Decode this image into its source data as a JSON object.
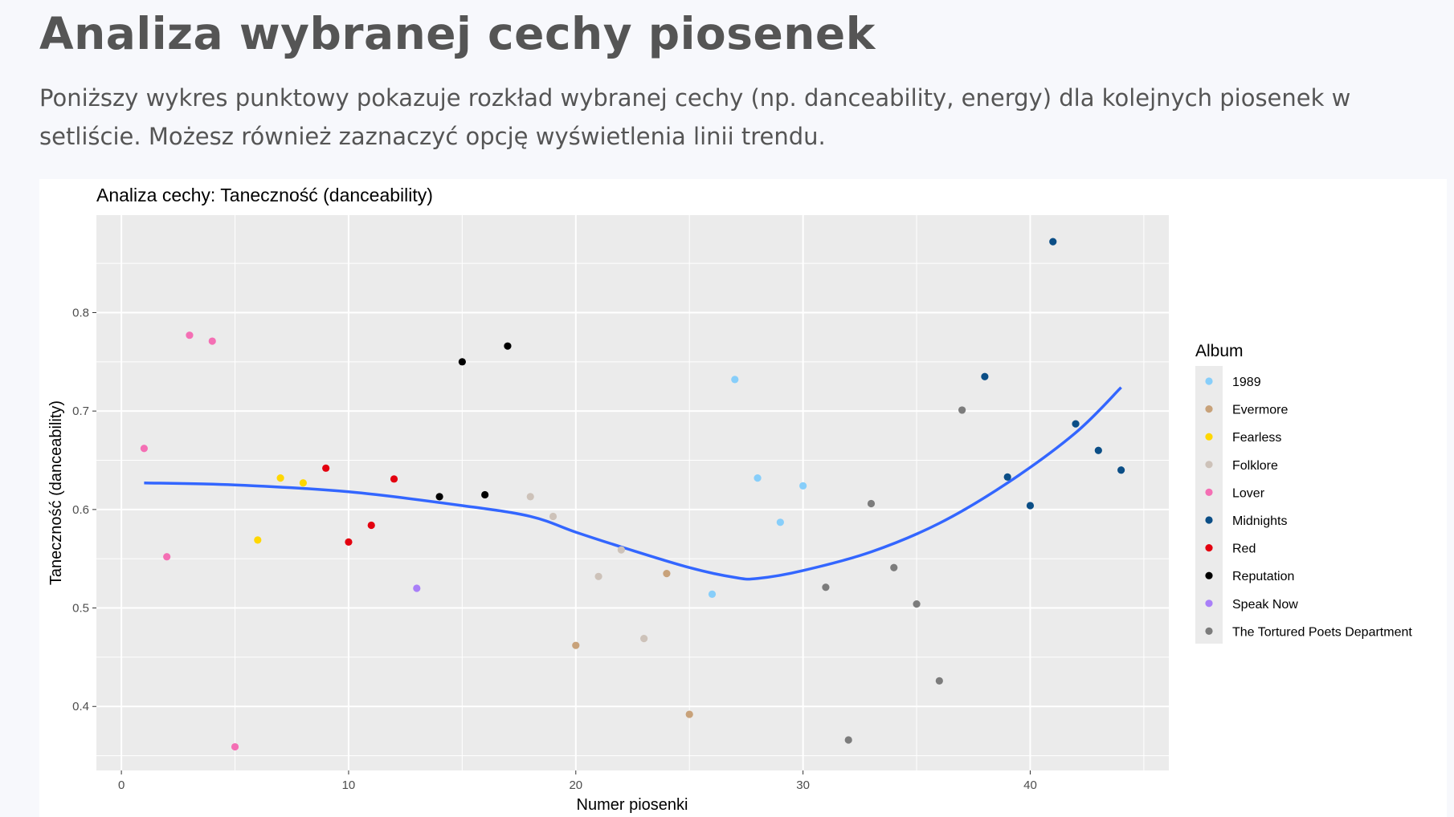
{
  "header": {
    "title": "Analiza wybranej cechy piosenek",
    "description": "Poniższy wykres punktowy pokazuje rozkład wybranej cechy (np. danceability, energy) dla kolejnych piosenek w setliście. Możesz również zaznaczyć opcję wyświetlenia linii trendu."
  },
  "chart_data": {
    "type": "scatter",
    "title": "Analiza cechy: Taneczność (danceability)",
    "xlabel": "Numer piosenki",
    "ylabel": "Taneczność (danceability)",
    "xlim": [
      -1.1,
      46.1
    ],
    "ylim": [
      0.335,
      0.899
    ],
    "xticks": [
      0,
      10,
      20,
      30,
      40
    ],
    "yticks": [
      0.4,
      0.5,
      0.6,
      0.7,
      0.8
    ],
    "grid": true,
    "legend_title": "Album",
    "legend_position": "right",
    "series": [
      {
        "name": "1989",
        "color": "#87CEFA",
        "points": [
          [
            26,
            0.514
          ],
          [
            27,
            0.732
          ],
          [
            28,
            0.632
          ],
          [
            29,
            0.587
          ],
          [
            30,
            0.624
          ]
        ]
      },
      {
        "name": "Evermore",
        "color": "#C8A27A",
        "points": [
          [
            20,
            0.462
          ],
          [
            24,
            0.535
          ],
          [
            25,
            0.392
          ]
        ]
      },
      {
        "name": "Fearless",
        "color": "#FFD700",
        "points": [
          [
            6,
            0.569
          ],
          [
            7,
            0.632
          ],
          [
            8,
            0.627
          ]
        ]
      },
      {
        "name": "Folklore",
        "color": "#CDC2B9",
        "points": [
          [
            18,
            0.613
          ],
          [
            19,
            0.593
          ],
          [
            21,
            0.532
          ],
          [
            22,
            0.559
          ],
          [
            23,
            0.469
          ]
        ]
      },
      {
        "name": "Lover",
        "color": "#F46FB4",
        "points": [
          [
            1,
            0.662
          ],
          [
            2,
            0.552
          ],
          [
            3,
            0.777
          ],
          [
            4,
            0.771
          ],
          [
            5,
            0.359
          ]
        ]
      },
      {
        "name": "Midnights",
        "color": "#0B4E86",
        "points": [
          [
            38,
            0.735
          ],
          [
            39,
            0.633
          ],
          [
            40,
            0.604
          ],
          [
            41,
            0.872
          ],
          [
            42,
            0.687
          ],
          [
            43,
            0.66
          ],
          [
            44,
            0.64
          ]
        ]
      },
      {
        "name": "Red",
        "color": "#E3000F",
        "points": [
          [
            9,
            0.642
          ],
          [
            10,
            0.567
          ],
          [
            11,
            0.584
          ],
          [
            12,
            0.631
          ]
        ]
      },
      {
        "name": "Reputation",
        "color": "#000000",
        "points": [
          [
            14,
            0.613
          ],
          [
            15,
            0.75
          ],
          [
            16,
            0.615
          ],
          [
            17,
            0.766
          ]
        ]
      },
      {
        "name": "Speak Now",
        "color": "#A97FF8",
        "points": [
          [
            13,
            0.52
          ]
        ]
      },
      {
        "name": "The Tortured Poets Department",
        "color": "#7C7C7C",
        "points": [
          [
            31,
            0.521
          ],
          [
            32,
            0.366
          ],
          [
            33,
            0.606
          ],
          [
            34,
            0.541
          ],
          [
            35,
            0.504
          ],
          [
            36,
            0.426
          ],
          [
            37,
            0.701
          ]
        ]
      }
    ],
    "trend": {
      "color": "#3366FF",
      "points": [
        [
          1,
          0.627
        ],
        [
          5,
          0.625
        ],
        [
          10,
          0.618
        ],
        [
          15,
          0.604
        ],
        [
          18,
          0.593
        ],
        [
          20,
          0.577
        ],
        [
          22,
          0.562
        ],
        [
          25,
          0.541
        ],
        [
          27,
          0.531
        ],
        [
          28,
          0.53
        ],
        [
          30,
          0.538
        ],
        [
          33,
          0.557
        ],
        [
          36,
          0.586
        ],
        [
          39,
          0.627
        ],
        [
          42,
          0.678
        ],
        [
          44,
          0.724
        ]
      ]
    }
  }
}
